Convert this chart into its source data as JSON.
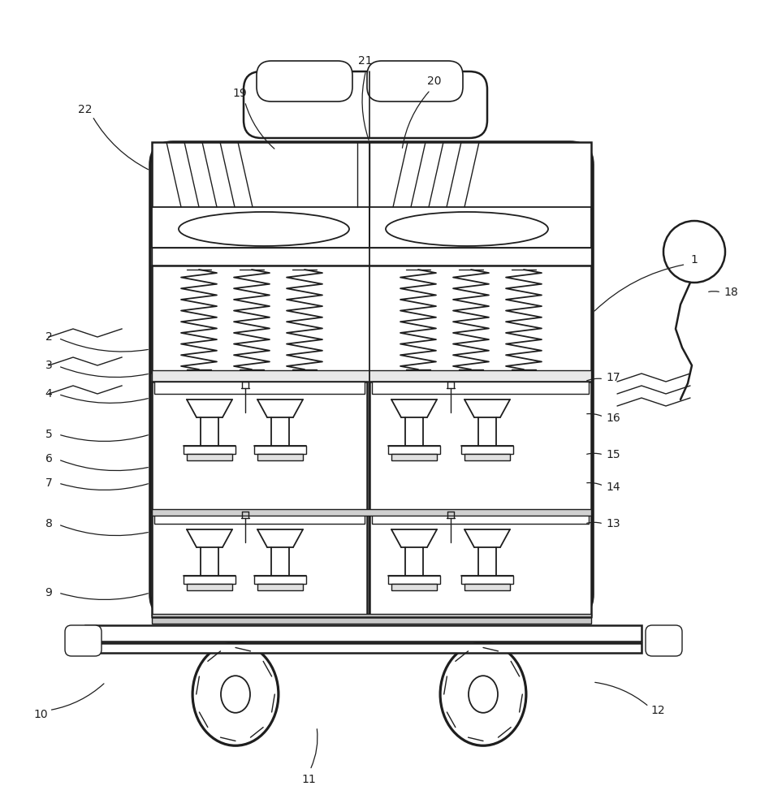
{
  "bg": "#ffffff",
  "lc": "#1e1e1e",
  "lw": 1.8,
  "tlw": 1.0,
  "fig_w": 9.63,
  "fig_h": 10.0,
  "labels": [
    [
      "1",
      855,
      320,
      730,
      385
    ],
    [
      "2",
      60,
      415,
      185,
      430
    ],
    [
      "3",
      60,
      450,
      185,
      460
    ],
    [
      "4",
      60,
      485,
      185,
      490
    ],
    [
      "5",
      60,
      535,
      185,
      535
    ],
    [
      "6",
      60,
      565,
      185,
      575
    ],
    [
      "7",
      60,
      595,
      185,
      595
    ],
    [
      "8",
      60,
      645,
      185,
      655
    ],
    [
      "9",
      60,
      730,
      185,
      730
    ],
    [
      "10",
      50,
      880,
      130,
      840
    ],
    [
      "11",
      380,
      960,
      390,
      895
    ],
    [
      "12",
      810,
      875,
      730,
      840
    ],
    [
      "13",
      755,
      645,
      720,
      645
    ],
    [
      "14",
      755,
      600,
      720,
      595
    ],
    [
      "15",
      755,
      560,
      720,
      560
    ],
    [
      "16",
      755,
      515,
      720,
      510
    ],
    [
      "17",
      755,
      465,
      720,
      470
    ],
    [
      "18",
      900,
      360,
      870,
      360
    ],
    [
      "19",
      295,
      115,
      340,
      185
    ],
    [
      "20",
      535,
      100,
      495,
      185
    ],
    [
      "21",
      450,
      75,
      455,
      175
    ],
    [
      "22",
      105,
      135,
      185,
      210
    ]
  ]
}
